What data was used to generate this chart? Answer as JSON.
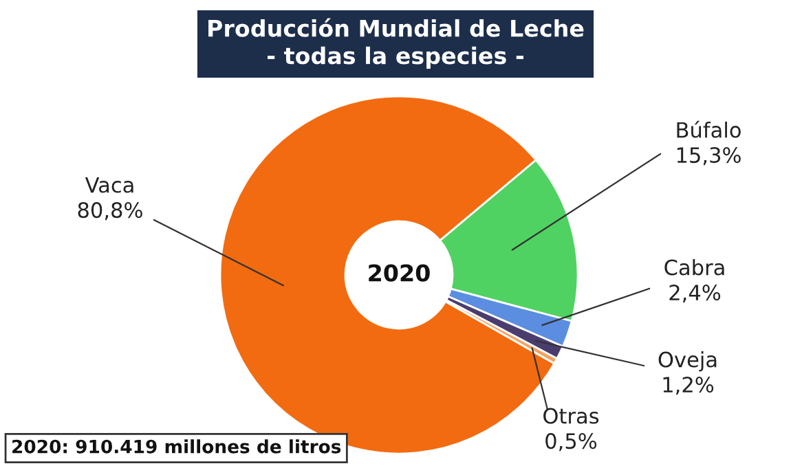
{
  "chart_data": {
    "type": "donut",
    "title": "Producción Mundial de Leche",
    "subtitle": "- todas la especies -",
    "categories": [
      "Vaca",
      "Búfalo",
      "Cabra",
      "Oveja",
      "Otras"
    ],
    "values": [
      80.8,
      15.3,
      2.4,
      1.2,
      0.5
    ],
    "value_labels": [
      "80,8%",
      "15,3%",
      "2,4%",
      "1,2%",
      "0,5%"
    ],
    "colors": [
      "#f26b10",
      "#50d262",
      "#5b8ee0",
      "#4a3d6e",
      "#f5a060"
    ],
    "annotations": [
      "2020",
      "2020: 910.419 millones de litros"
    ]
  }
}
